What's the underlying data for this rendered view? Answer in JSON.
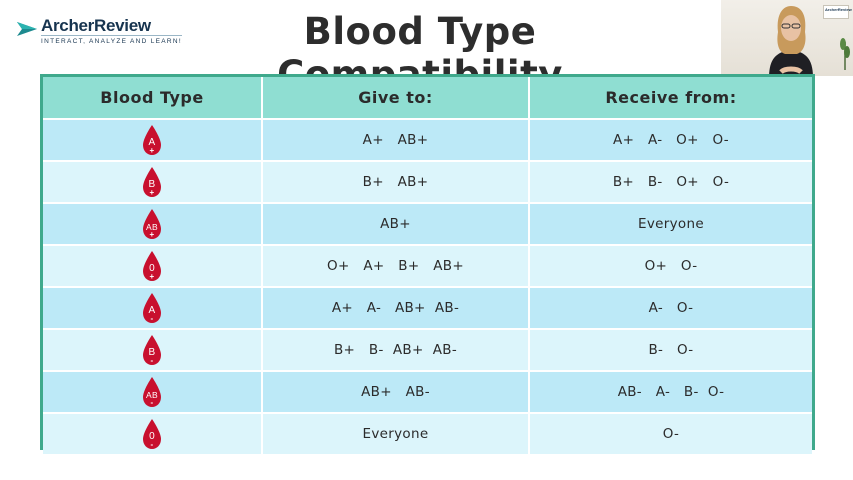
{
  "brand": {
    "name": "ArcherReview",
    "tagline": "INTERACT, ANALYZE AND LEARN!"
  },
  "title": "Blood Type Compatibility",
  "video": {
    "poster_brand": "ArcherReview"
  },
  "colors": {
    "header_bg": "#8fded2",
    "row_dark": "#bce9f7",
    "row_light": "#dcf5fb",
    "border": "#3fa98c",
    "drop": "#c8102e"
  },
  "table": {
    "headers": [
      "Blood Type",
      "Give to:",
      "Receive from:"
    ],
    "rows": [
      {
        "type": "A",
        "sign": "+",
        "give": "A+   AB+",
        "receive": "A+   A-   O+   O-"
      },
      {
        "type": "B",
        "sign": "+",
        "give": "B+   AB+",
        "receive": "B+   B-   O+   O-"
      },
      {
        "type": "AB",
        "sign": "+",
        "give": "AB+",
        "receive": "Everyone"
      },
      {
        "type": "0",
        "sign": "+",
        "give": "O+   A+   B+   AB+",
        "receive": "O+   O-"
      },
      {
        "type": "A",
        "sign": "-",
        "give": "A+   A-   AB+  AB-",
        "receive": "A-   O-"
      },
      {
        "type": "B",
        "sign": "-",
        "give": "B+   B-  AB+  AB-",
        "receive": "B-   O-"
      },
      {
        "type": "AB",
        "sign": "-",
        "give": "AB+   AB-",
        "receive": "AB-   A-   B-  O-"
      },
      {
        "type": "0",
        "sign": "-",
        "give": "Everyone",
        "receive": "O-"
      }
    ]
  }
}
